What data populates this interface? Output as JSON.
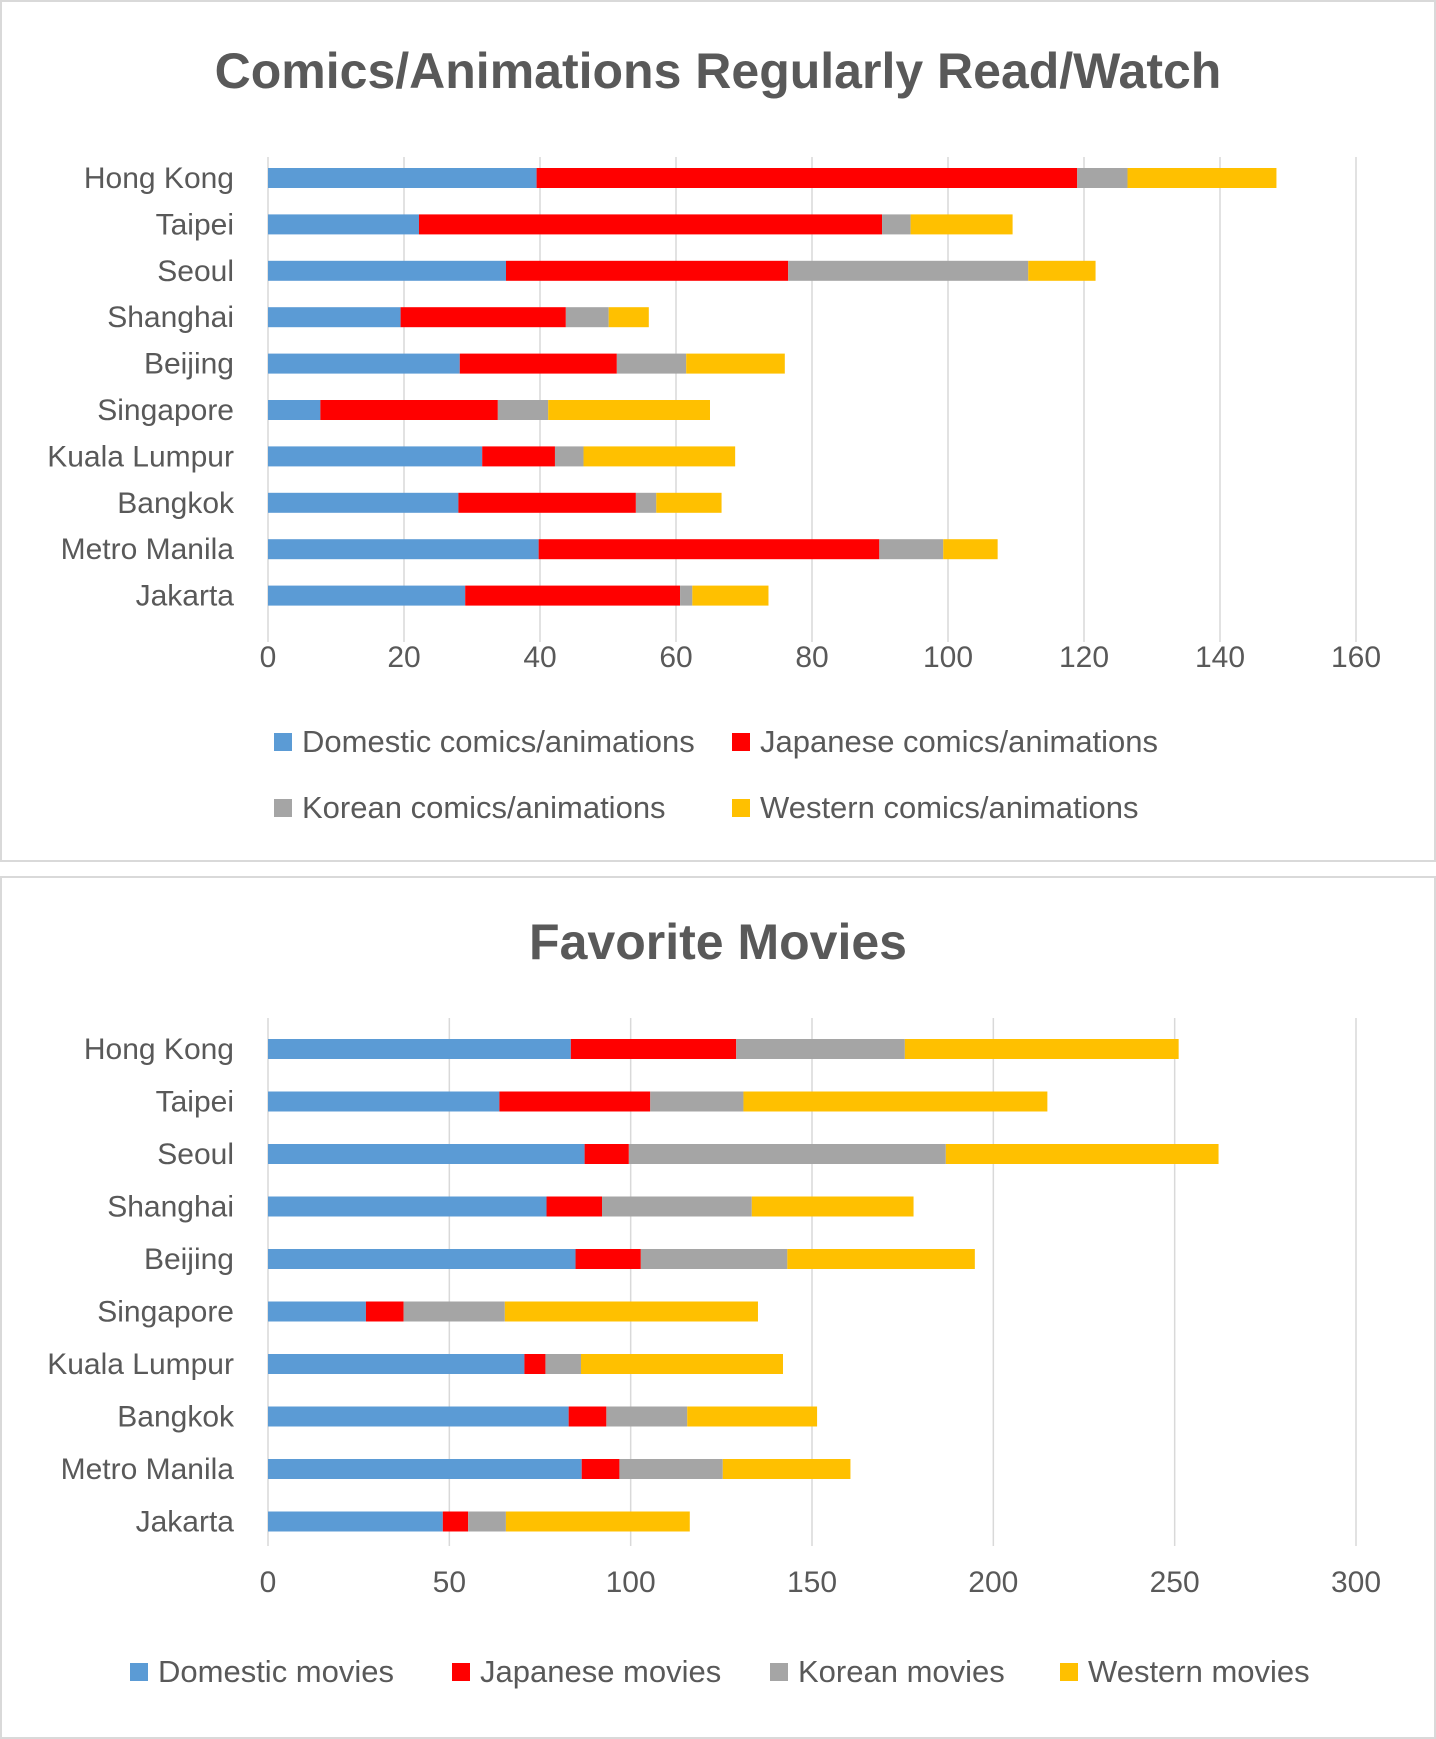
{
  "chart_data": [
    {
      "type": "bar",
      "orientation": "horizontal",
      "stacked": true,
      "title": "Comics/Animations Regularly Read/Watch",
      "categories": [
        "Hong Kong",
        "Taipei",
        "Seoul",
        "Shanghai",
        "Beijing",
        "Singapore",
        "Kuala Lumpur",
        "Bangkok",
        "Metro Manila",
        "Jakarta"
      ],
      "series": [
        {
          "name": "Domestic comics/animations",
          "color": "#5b9bd5",
          "values": [
            39.5,
            22.2,
            35.0,
            19.5,
            28.2,
            7.7,
            31.5,
            28.0,
            39.8,
            29.0
          ]
        },
        {
          "name": "Japanese comics/animations",
          "color": "#ff0000",
          "values": [
            79.5,
            68.1,
            41.5,
            24.3,
            23.1,
            26.1,
            10.7,
            26.1,
            50.1,
            31.6
          ]
        },
        {
          "name": "Korean comics/animations",
          "color": "#a5a5a5",
          "values": [
            7.4,
            4.2,
            35.3,
            6.3,
            10.2,
            7.4,
            4.2,
            3.0,
            9.4,
            1.8
          ]
        },
        {
          "name": "Western comics/animations",
          "color": "#ffc000",
          "values": [
            21.9,
            15.0,
            9.9,
            5.9,
            14.5,
            23.8,
            22.3,
            9.6,
            8.0,
            11.2
          ]
        }
      ],
      "xlim": [
        0,
        160
      ],
      "xticks": [
        "0",
        "20",
        "40",
        "60",
        "80",
        "100",
        "120",
        "140",
        "160"
      ],
      "grid": true,
      "legend": "bottom"
    },
    {
      "type": "bar",
      "orientation": "horizontal",
      "stacked": true,
      "title": "Favorite Movies",
      "categories": [
        "Hong Kong",
        "Taipei",
        "Seoul",
        "Shanghai",
        "Beijing",
        "Singapore",
        "Kuala Lumpur",
        "Bangkok",
        "Metro Manila",
        "Jakarta"
      ],
      "series": [
        {
          "name": "Domestic movies",
          "color": "#5b9bd5",
          "values": [
            83.5,
            63.8,
            87.3,
            76.8,
            84.8,
            27.0,
            70.7,
            82.9,
            86.5,
            48.2
          ]
        },
        {
          "name": "Japanese movies",
          "color": "#ff0000",
          "values": [
            45.6,
            41.6,
            12.2,
            15.3,
            18.0,
            10.4,
            5.8,
            10.4,
            10.4,
            7.0
          ]
        },
        {
          "name": "Korean movies",
          "color": "#a5a5a5",
          "values": [
            46.5,
            25.7,
            87.4,
            41.3,
            40.4,
            27.9,
            9.8,
            22.3,
            28.5,
            10.4
          ]
        },
        {
          "name": "Western movies",
          "color": "#ffc000",
          "values": [
            75.5,
            83.8,
            75.2,
            44.6,
            51.7,
            69.8,
            55.7,
            35.8,
            35.2,
            50.7
          ]
        }
      ],
      "xlim": [
        0,
        300
      ],
      "xticks": [
        "0",
        "50",
        "100",
        "150",
        "200",
        "250",
        "300"
      ],
      "grid": true,
      "legend": "bottom"
    }
  ]
}
